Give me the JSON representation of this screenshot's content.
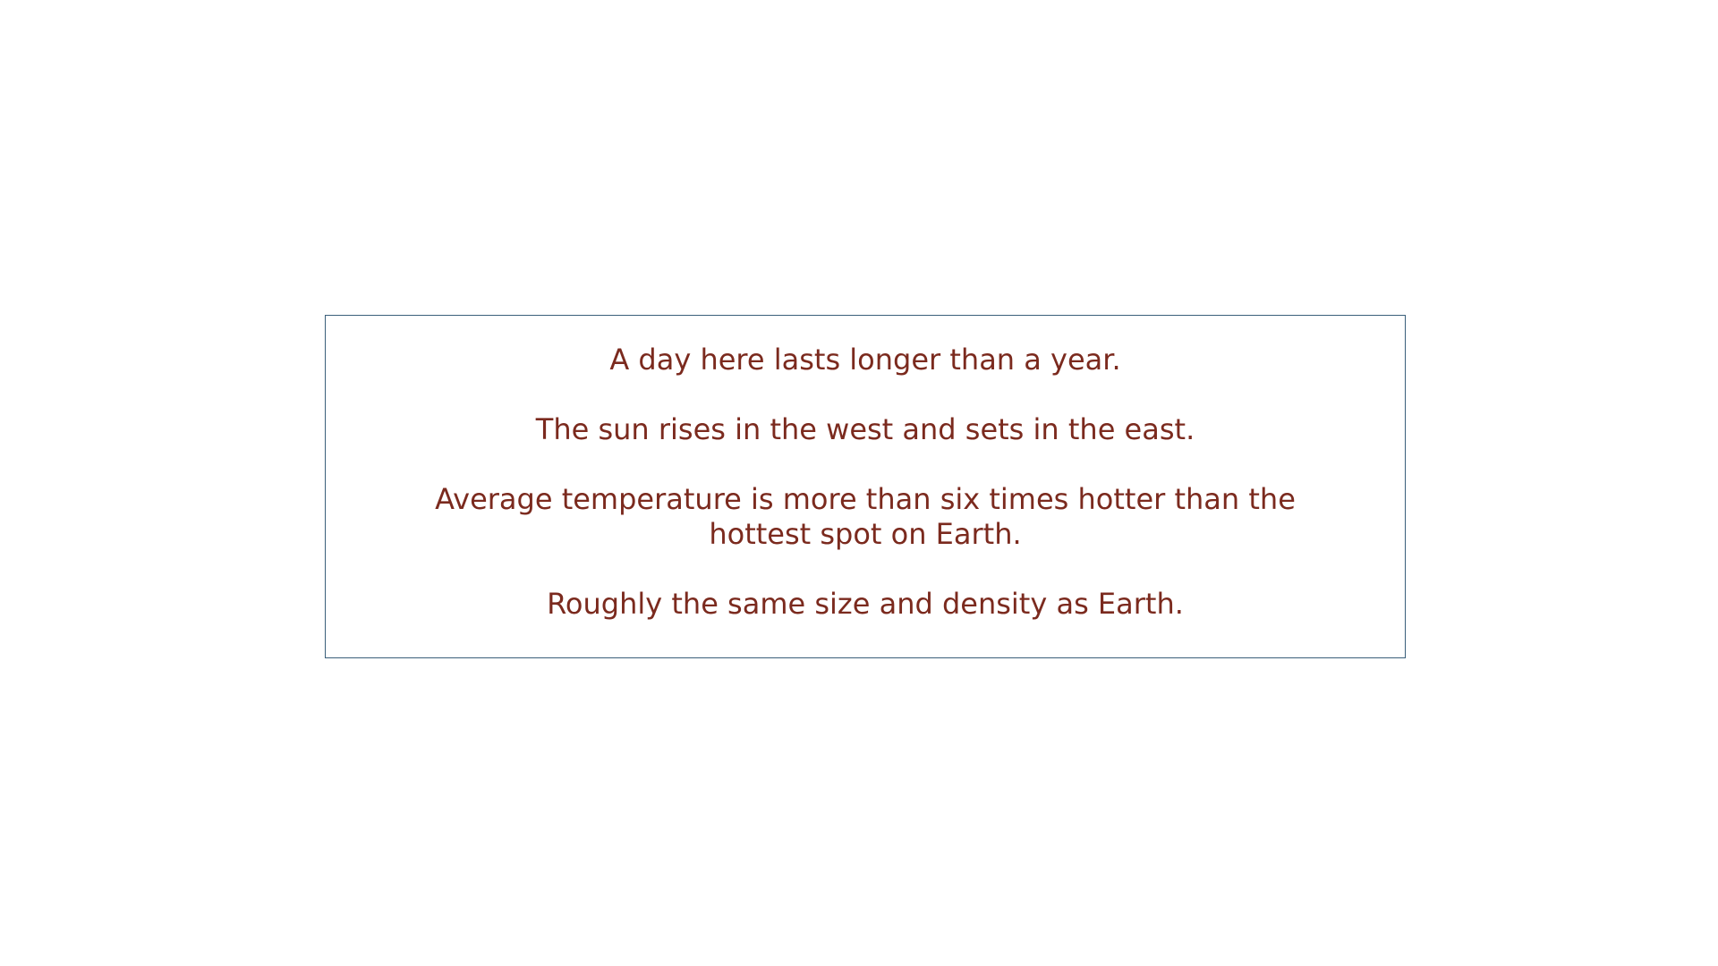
{
  "colors": {
    "text": "#7b2a1e",
    "border": "#3a5f7a",
    "background": "#ffffff"
  },
  "facts": [
    "A day here lasts longer than a year.",
    "The sun rises in the west and sets in the east.",
    "Average temperature is more than six times hotter than the hottest spot on Earth.",
    "Roughly the same size and density as Earth."
  ]
}
